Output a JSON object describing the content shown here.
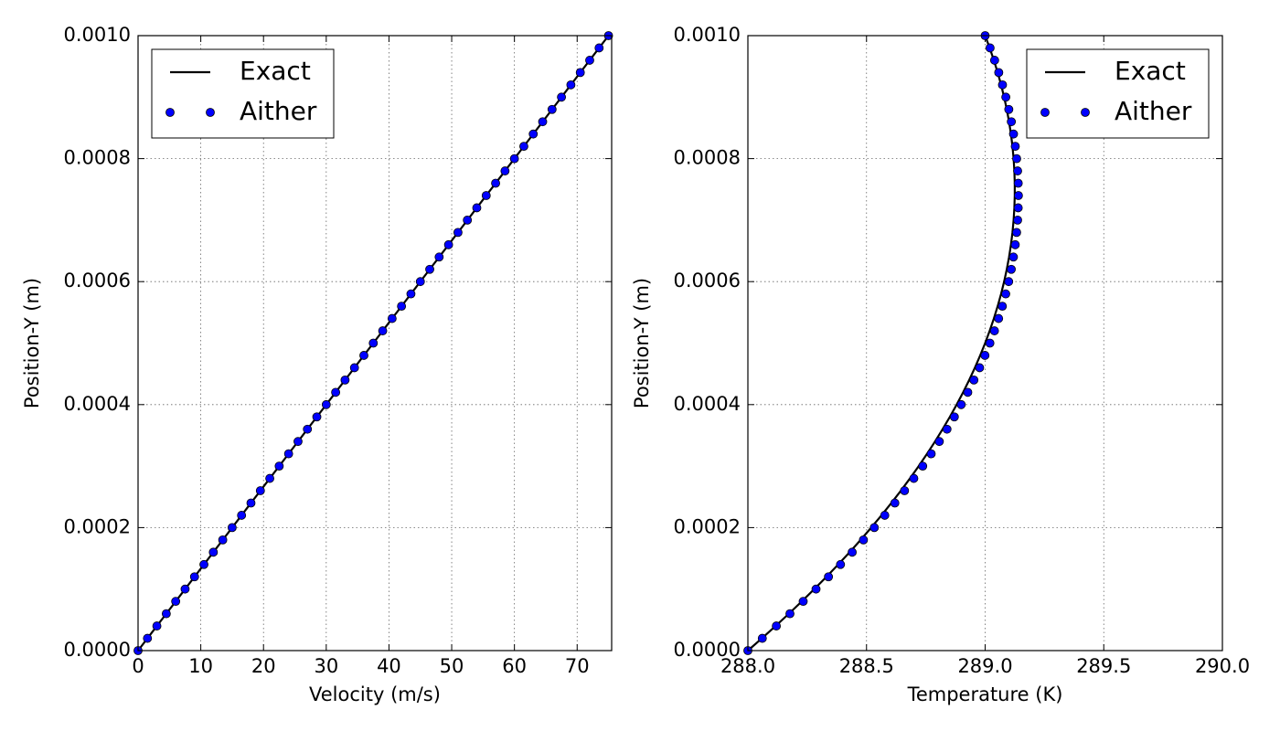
{
  "chart_data": [
    {
      "type": "line",
      "xlabel": "Velocity (m/s)",
      "ylabel": "Position-Y (m)",
      "xlim": [
        0,
        75.5
      ],
      "xticks": [
        0,
        10,
        20,
        30,
        40,
        50,
        60,
        70
      ],
      "ylim": [
        0,
        0.001
      ],
      "yticks": [
        {
          "value": 0,
          "label": "0.0000"
        },
        {
          "value": 0.0002,
          "label": "0.0002"
        },
        {
          "value": 0.0004,
          "label": "0.0004"
        },
        {
          "value": 0.0006,
          "label": "0.0006"
        },
        {
          "value": 0.0008,
          "label": "0.0008"
        },
        {
          "value": 0.001,
          "label": "0.0010"
        }
      ],
      "grid": true,
      "legend": "upper left",
      "y": [
        0,
        2e-05,
        4e-05,
        6e-05,
        8e-05,
        0.0001,
        0.00012,
        0.00014,
        0.00016,
        0.00018,
        0.0002,
        0.00022,
        0.00024,
        0.00026,
        0.00028,
        0.0003,
        0.00032,
        0.00034,
        0.00036,
        0.00038,
        0.0004,
        0.00042,
        0.00044,
        0.00046,
        0.00048,
        0.0005,
        0.00052,
        0.00054,
        0.00056,
        0.00058,
        0.0006,
        0.00062,
        0.00064,
        0.00066,
        0.00068,
        0.0007,
        0.00072,
        0.00074,
        0.00076,
        0.00078,
        0.0008,
        0.00082,
        0.00084,
        0.00086,
        0.00088,
        0.0009,
        0.00092,
        0.00094,
        0.00096,
        0.00098,
        0.001
      ],
      "series": [
        {
          "name": "Exact",
          "color": "#000000",
          "style": "line",
          "x": [
            0,
            1.5,
            3,
            4.5,
            6,
            7.5,
            9,
            10.5,
            12,
            13.5,
            15,
            16.5,
            18,
            19.5,
            21,
            22.5,
            24,
            25.5,
            27,
            28.5,
            30,
            31.5,
            33,
            34.5,
            36,
            37.5,
            39,
            40.5,
            42,
            43.5,
            45,
            46.5,
            48,
            49.5,
            51,
            52.5,
            54,
            55.5,
            57,
            58.5,
            60,
            61.5,
            63,
            64.5,
            66,
            67.5,
            69,
            70.5,
            72,
            73.5,
            75
          ]
        },
        {
          "name": "Aither",
          "color": "#0000ff",
          "style": "markers",
          "x": [
            0,
            1.5,
            3,
            4.5,
            6,
            7.5,
            9,
            10.5,
            12,
            13.5,
            15,
            16.5,
            18,
            19.5,
            21,
            22.5,
            24,
            25.5,
            27,
            28.5,
            30,
            31.5,
            33,
            34.5,
            36,
            37.5,
            39,
            40.5,
            42,
            43.5,
            45,
            46.5,
            48,
            49.5,
            51,
            52.5,
            54,
            55.5,
            57,
            58.5,
            60,
            61.5,
            63,
            64.5,
            66,
            67.5,
            69,
            70.5,
            72,
            73.5,
            75
          ]
        }
      ]
    },
    {
      "type": "line",
      "xlabel": "Temperature (K)",
      "ylabel": "Position-Y (m)",
      "xlim": [
        288,
        290
      ],
      "xticks": [
        {
          "value": 288,
          "label": "288.0"
        },
        {
          "value": 288.5,
          "label": "288.5"
        },
        {
          "value": 289,
          "label": "289.0"
        },
        {
          "value": 289.5,
          "label": "289.5"
        },
        {
          "value": 290,
          "label": "290.0"
        }
      ],
      "ylim": [
        0,
        0.001
      ],
      "yticks": [
        {
          "value": 0,
          "label": "0.0000"
        },
        {
          "value": 0.0002,
          "label": "0.0002"
        },
        {
          "value": 0.0004,
          "label": "0.0004"
        },
        {
          "value": 0.0006,
          "label": "0.0006"
        },
        {
          "value": 0.0008,
          "label": "0.0008"
        },
        {
          "value": 0.001,
          "label": "0.0010"
        }
      ],
      "grid": true,
      "legend": "upper right",
      "y": [
        0,
        2e-05,
        4e-05,
        6e-05,
        8e-05,
        0.0001,
        0.00012,
        0.00014,
        0.00016,
        0.00018,
        0.0002,
        0.00022,
        0.00024,
        0.00026,
        0.00028,
        0.0003,
        0.00032,
        0.00034,
        0.00036,
        0.00038,
        0.0004,
        0.00042,
        0.00044,
        0.00046,
        0.00048,
        0.0005,
        0.00052,
        0.00054,
        0.00056,
        0.00058,
        0.0006,
        0.00062,
        0.00064,
        0.00066,
        0.00068,
        0.0007,
        0.00072,
        0.00074,
        0.00076,
        0.00078,
        0.0008,
        0.00082,
        0.00084,
        0.00086,
        0.00088,
        0.0009,
        0.00092,
        0.00094,
        0.00096,
        0.00098,
        0.001
      ],
      "series": [
        {
          "name": "Exact",
          "color": "#000000",
          "style": "line",
          "x": [
            288,
            288.0592,
            288.1168,
            288.1728,
            288.2272,
            288.28,
            288.3312,
            288.3808,
            288.4288,
            288.4752,
            288.52,
            288.5632,
            288.6048,
            288.6448,
            288.6832,
            288.72,
            288.7552,
            288.7888,
            288.8208,
            288.8512,
            288.88,
            288.9072,
            288.9328,
            288.9568,
            288.9792,
            289,
            289.0192,
            289.0368,
            289.0528,
            289.0672,
            289.08,
            289.0912,
            289.1008,
            289.1088,
            289.1152,
            289.12,
            289.1232,
            289.1248,
            289.1248,
            289.1232,
            289.12,
            289.1152,
            289.1088,
            289.1008,
            289.0912,
            289.08,
            289.0672,
            289.0528,
            289.0368,
            289.0192,
            289
          ]
        },
        {
          "name": "Aither",
          "color": "#0000ff",
          "style": "markers",
          "x": [
            288,
            288.0608,
            288.1199,
            288.1773,
            288.2331,
            288.2872,
            288.3397,
            288.3904,
            288.4396,
            288.487,
            288.5328,
            288.5769,
            288.6194,
            288.6602,
            288.6993,
            288.7368,
            288.7726,
            288.8068,
            288.8392,
            288.8701,
            288.8992,
            288.9267,
            288.9525,
            288.9767,
            288.9992,
            289.02,
            289.0392,
            289.0567,
            289.0725,
            289.0867,
            289.0992,
            289.1101,
            289.1192,
            289.1268,
            289.1326,
            289.1368,
            289.1393,
            289.1402,
            289.1394,
            289.1369,
            289.1328,
            289.127,
            289.1196,
            289.1104,
            289.0997,
            289.0872,
            289.0731,
            289.0573,
            289.0399,
            289.0208,
            289
          ]
        }
      ]
    }
  ]
}
